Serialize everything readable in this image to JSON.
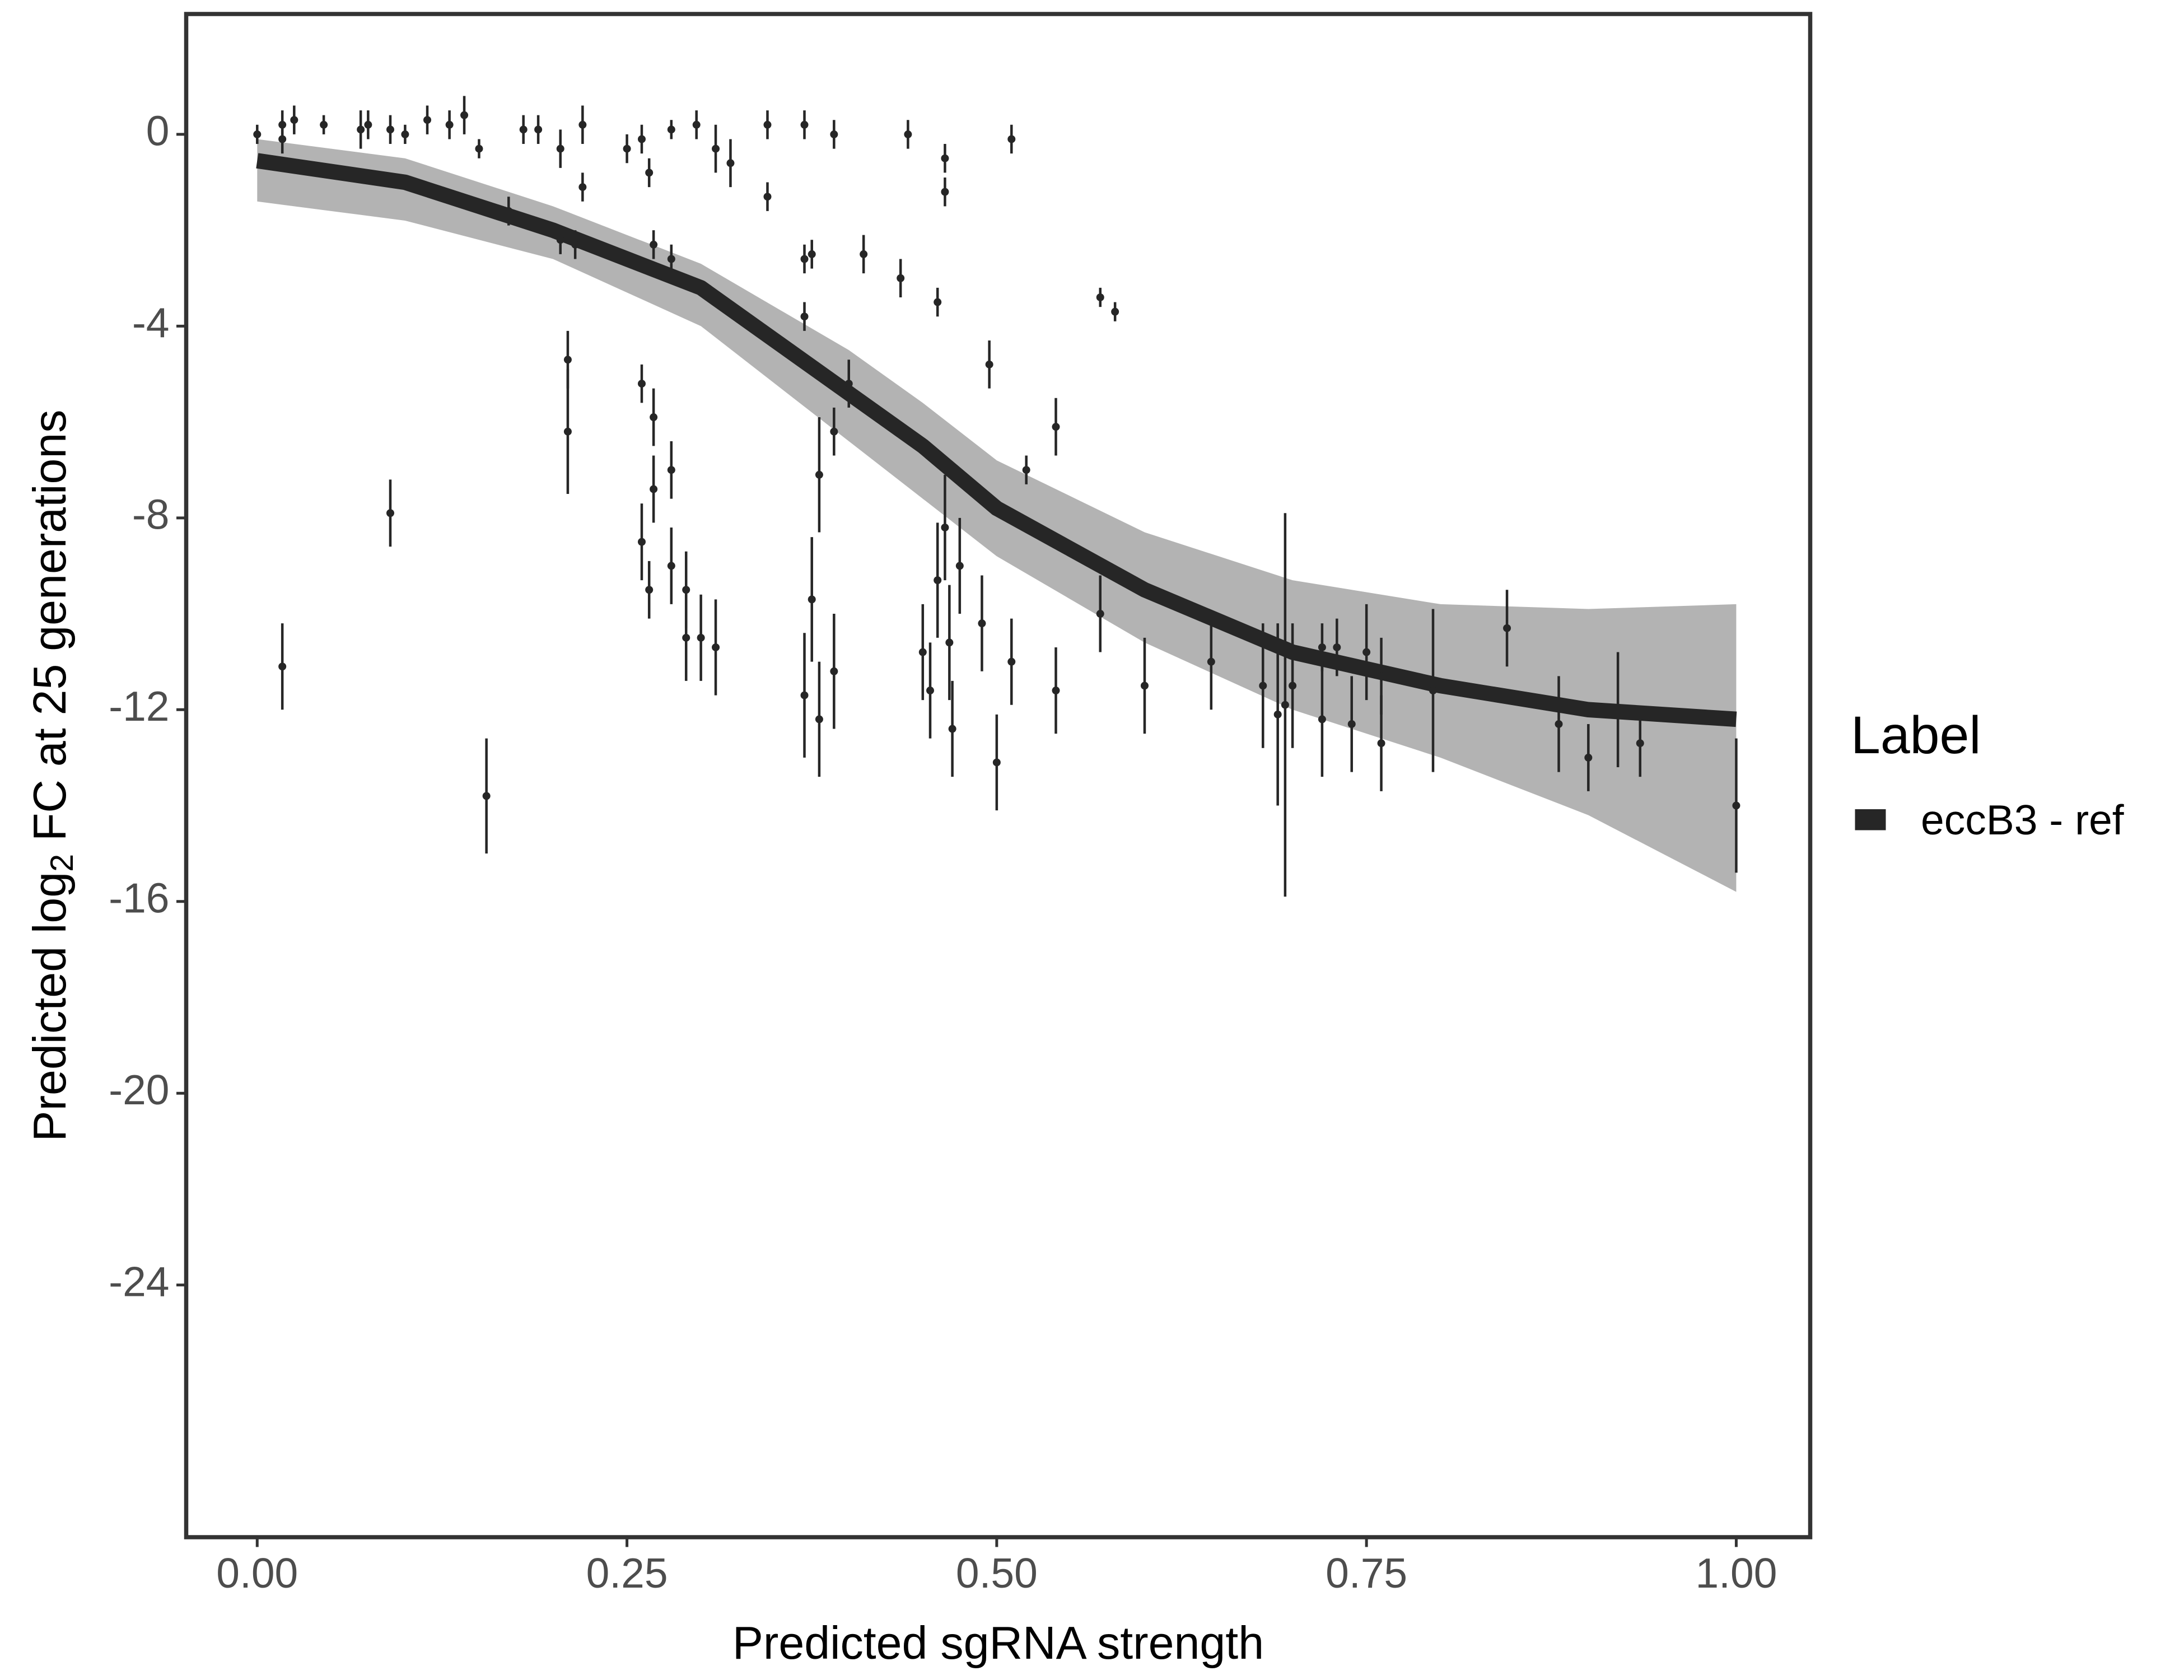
{
  "chart_data": {
    "type": "scatter",
    "x_label": "Predicted sgRNA strength",
    "y_label": [
      "Predicted  log",
      "2",
      " FC at 25 generations"
    ],
    "xlim": [
      -0.048,
      1.05
    ],
    "ylim": [
      -29.26,
      2.51
    ],
    "xticks": [
      {
        "value": 0,
        "label": "0.00"
      },
      {
        "value": 0.25,
        "label": "0.25"
      },
      {
        "value": 0.5,
        "label": "0.50"
      },
      {
        "value": 0.75,
        "label": "0.75"
      },
      {
        "value": 1,
        "label": "1.00"
      }
    ],
    "yticks": [
      0,
      -4,
      -8,
      -12,
      -16,
      -20,
      -24
    ],
    "grid": false,
    "legend_title": "Label",
    "legend_position": "right",
    "series": [
      {
        "name": "eccB3 - ref",
        "color": "#262626",
        "band_color": "#a6a6a6",
        "x": [
          0,
          0.1,
          0.2,
          0.3,
          0.4,
          0.45,
          0.5,
          0.6,
          0.7,
          0.8,
          0.9,
          1.0
        ],
        "values": [
          -0.55,
          -1.0,
          -2.0,
          -3.2,
          -5.4,
          -6.5,
          -7.8,
          -9.5,
          -10.8,
          -11.5,
          -12.0,
          -12.2
        ],
        "lower": [
          -1.4,
          -1.8,
          -2.6,
          -4.0,
          -6.4,
          -7.6,
          -8.8,
          -10.6,
          -12.0,
          -13.0,
          -14.2,
          -15.8
        ],
        "upper": [
          -0.1,
          -0.5,
          -1.5,
          -2.7,
          -4.5,
          -5.6,
          -6.8,
          -8.3,
          -9.3,
          -9.8,
          -9.9,
          -9.8
        ]
      }
    ],
    "points": {
      "color": "#262626",
      "x": [
        0.0,
        0.017,
        0.017,
        0.025,
        0.045,
        0.07,
        0.075,
        0.09,
        0.1,
        0.115,
        0.13,
        0.14,
        0.15,
        0.18,
        0.19,
        0.205,
        0.22,
        0.25,
        0.26,
        0.265,
        0.28,
        0.297,
        0.31,
        0.32,
        0.345,
        0.37,
        0.39,
        0.44,
        0.465,
        0.51,
        0.017,
        0.09,
        0.155,
        0.17,
        0.205,
        0.215,
        0.22,
        0.21,
        0.21,
        0.26,
        0.268,
        0.268,
        0.28,
        0.26,
        0.265,
        0.28,
        0.29,
        0.29,
        0.3,
        0.31,
        0.268,
        0.28,
        0.345,
        0.37,
        0.375,
        0.37,
        0.38,
        0.39,
        0.4,
        0.41,
        0.435,
        0.46,
        0.465,
        0.495,
        0.37,
        0.375,
        0.38,
        0.39,
        0.45,
        0.455,
        0.46,
        0.465,
        0.468,
        0.47,
        0.475,
        0.49,
        0.5,
        0.52,
        0.54,
        0.54,
        0.51,
        0.57,
        0.58,
        0.57,
        0.6,
        0.645,
        0.68,
        0.69,
        0.695,
        0.7,
        0.72,
        0.72,
        0.73,
        0.74,
        0.75,
        0.76,
        0.76,
        0.795,
        0.845,
        0.88,
        0.9,
        0.92,
        0.935,
        1.0
      ],
      "values": [
        0,
        -0.1,
        0.2,
        0.3,
        0.2,
        0.1,
        0.2,
        0.1,
        0.0,
        0.3,
        0.2,
        0.4,
        -0.3,
        0.1,
        0.1,
        -0.3,
        0.2,
        -0.3,
        -0.1,
        -0.8,
        0.1,
        0.2,
        -0.3,
        -0.6,
        0.2,
        0.2,
        0,
        0,
        -0.5,
        -0.1,
        -11.1,
        -7.9,
        -13.8,
        -1.6,
        -2.2,
        -2.3,
        -1.1,
        -4.7,
        -6.2,
        -5.2,
        -5.9,
        -7.4,
        -7.0,
        -8.5,
        -9.5,
        -9.0,
        -9.5,
        -10.5,
        -10.5,
        -10.7,
        -2.3,
        -2.6,
        -1.3,
        -2.6,
        -2.5,
        -3.8,
        -7.1,
        -6.2,
        -5.2,
        -2.5,
        -3.0,
        -3.5,
        -1.2,
        -4.8,
        -11.7,
        -9.7,
        -12.2,
        -11.2,
        -10.8,
        -11.6,
        -9.3,
        -8.2,
        -10.6,
        -12.4,
        -9.0,
        -10.2,
        -13.1,
        -7.0,
        -6.1,
        -11.6,
        -11.0,
        -3.4,
        -3.7,
        -10.0,
        -11.5,
        -11.0,
        -11.5,
        -12.1,
        -11.9,
        -11.5,
        -12.2,
        -10.7,
        -10.7,
        -12.3,
        -10.8,
        -12.7,
        -11.3,
        -11.6,
        -10.3,
        -12.3,
        -13.0,
        -12.0,
        -12.7,
        -14.0
      ],
      "errors": [
        0.2,
        0.3,
        0.3,
        0.3,
        0.2,
        0.4,
        0.3,
        0.3,
        0.2,
        0.3,
        0.3,
        0.4,
        0.2,
        0.3,
        0.3,
        0.4,
        0.4,
        0.3,
        0.3,
        0.3,
        0.2,
        0.3,
        0.5,
        0.5,
        0.3,
        0.3,
        0.3,
        0.3,
        0.3,
        0.3,
        0.9,
        0.7,
        1.2,
        0.3,
        0.3,
        0.3,
        0.3,
        0.6,
        1.3,
        0.4,
        0.6,
        0.7,
        0.6,
        0.8,
        0.6,
        0.8,
        0.8,
        0.9,
        0.9,
        1.0,
        0.3,
        0.3,
        0.3,
        0.3,
        0.3,
        0.3,
        1.2,
        0.5,
        0.5,
        0.4,
        0.4,
        0.3,
        0.3,
        0.5,
        1.3,
        1.3,
        1.2,
        1.2,
        1.0,
        1.0,
        1.2,
        1.1,
        1.2,
        1.0,
        1.0,
        1.0,
        1.0,
        0.3,
        0.6,
        0.9,
        0.9,
        0.2,
        0.2,
        0.8,
        1.0,
        1.0,
        1.3,
        1.9,
        4.0,
        1.3,
        1.2,
        0.5,
        0.6,
        1.0,
        1.0,
        1.0,
        0.8,
        1.7,
        0.8,
        1.0,
        0.7,
        1.2,
        0.7,
        1.4
      ]
    }
  }
}
